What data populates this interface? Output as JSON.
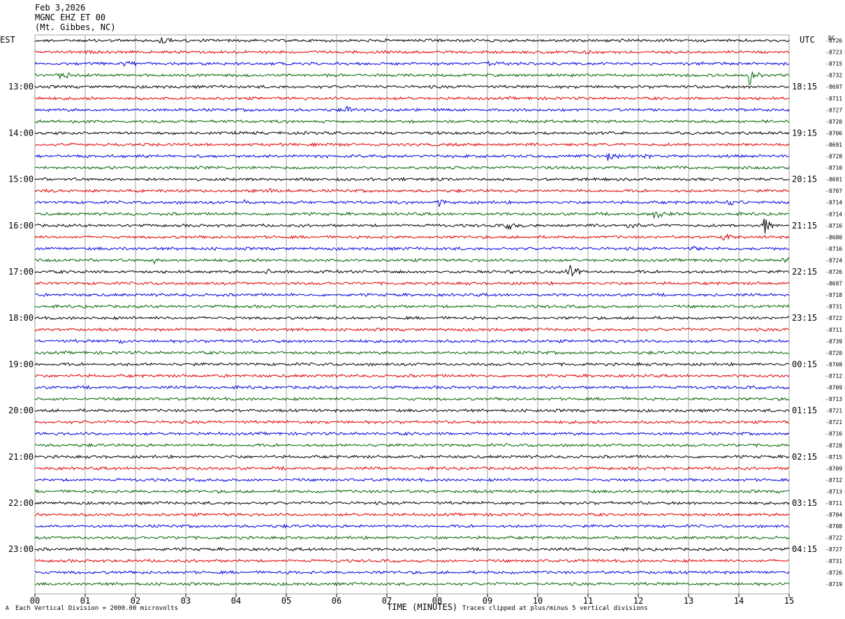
{
  "header": {
    "date": "Feb 3,2026",
    "station": "MGNC EHZ ET 00",
    "location": "(Mt. Gibbes, NC)"
  },
  "left_axis_label": "EST",
  "right_axis_label": "UTC",
  "dc_label": "DC",
  "footer": {
    "scale_note": "Each Vertical Division = 2000.00 microvolts",
    "x_title": "TIME (MINUTES)",
    "clip_note": "Traces clipped at plus/minus 5 vertical divisions",
    "corner_mark": "A"
  },
  "colors": {
    "cycle": [
      "#000000",
      "#e00000",
      "#0000e0",
      "#006400"
    ],
    "grid": "#a0a0a0"
  },
  "chart_data": {
    "type": "line",
    "title": "",
    "x_ticks": [
      "00",
      "01",
      "02",
      "03",
      "04",
      "05",
      "06",
      "07",
      "08",
      "09",
      "10",
      "11",
      "12",
      "13",
      "14",
      "15"
    ],
    "xlim": [
      0,
      15
    ],
    "trace_count": 48,
    "left_time_labels": [
      {
        "trace": 4,
        "label": "13:00"
      },
      {
        "trace": 8,
        "label": "14:00"
      },
      {
        "trace": 12,
        "label": "15:00"
      },
      {
        "trace": 16,
        "label": "16:00"
      },
      {
        "trace": 20,
        "label": "17:00"
      },
      {
        "trace": 24,
        "label": "18:00"
      },
      {
        "trace": 28,
        "label": "19:00"
      },
      {
        "trace": 32,
        "label": "20:00"
      },
      {
        "trace": 36,
        "label": "21:00"
      },
      {
        "trace": 40,
        "label": "22:00"
      },
      {
        "trace": 44,
        "label": "23:00"
      }
    ],
    "right_time_labels": [
      {
        "trace": 4,
        "label": "18:15"
      },
      {
        "trace": 8,
        "label": "19:15"
      },
      {
        "trace": 12,
        "label": "20:15"
      },
      {
        "trace": 16,
        "label": "21:15"
      },
      {
        "trace": 20,
        "label": "22:15"
      },
      {
        "trace": 24,
        "label": "23:15"
      },
      {
        "trace": 28,
        "label": "00:15"
      },
      {
        "trace": 32,
        "label": "01:15"
      },
      {
        "trace": 36,
        "label": "02:15"
      },
      {
        "trace": 40,
        "label": "03:15"
      },
      {
        "trace": 44,
        "label": "04:15"
      }
    ],
    "dc_offsets": [
      "-8726",
      "-8723",
      "-8715",
      "-8732",
      "-8697",
      "-8711",
      "-8727",
      "-8720",
      "-8706",
      "-8691",
      "-8728",
      "-8710",
      "-8691",
      "-8707",
      "-8714",
      "-8714",
      "-8716",
      "-8680",
      "-8716",
      "-8724",
      "-8726",
      "-8697",
      "-8718",
      "-8731",
      "-8722",
      "-8711",
      "-8739",
      "-8720",
      "-8708",
      "-8712",
      "-8709",
      "-8713",
      "-8721",
      "-8721",
      "-8716",
      "-8728",
      "-8715",
      "-8709",
      "-8712",
      "-8713",
      "-8711",
      "-8704",
      "-8708",
      "-8722",
      "-8727",
      "-8731",
      "-8726",
      "-8719"
    ],
    "events": [
      {
        "trace": 0,
        "minute": 2.5,
        "amp": 0.7
      },
      {
        "trace": 1,
        "minute": 10.9,
        "amp": 0.5
      },
      {
        "trace": 2,
        "minute": 1.8,
        "amp": 0.7
      },
      {
        "trace": 2,
        "minute": 9.0,
        "amp": 0.4
      },
      {
        "trace": 3,
        "minute": 0.45,
        "amp": 0.8
      },
      {
        "trace": 3,
        "minute": 14.2,
        "amp": 1.2
      },
      {
        "trace": 6,
        "minute": 6.2,
        "amp": 0.4
      },
      {
        "trace": 10,
        "minute": 11.4,
        "amp": 0.5
      },
      {
        "trace": 10,
        "minute": 12.1,
        "amp": 0.3
      },
      {
        "trace": 11,
        "minute": 12.7,
        "amp": 0.4
      },
      {
        "trace": 13,
        "minute": 4.7,
        "amp": 0.4
      },
      {
        "trace": 14,
        "minute": 4.1,
        "amp": 0.4
      },
      {
        "trace": 14,
        "minute": 8.0,
        "amp": 0.8
      },
      {
        "trace": 14,
        "minute": 13.8,
        "amp": 0.7
      },
      {
        "trace": 15,
        "minute": 12.3,
        "amp": 0.9
      },
      {
        "trace": 16,
        "minute": 9.4,
        "amp": 0.7
      },
      {
        "trace": 16,
        "minute": 11.8,
        "amp": 0.5
      },
      {
        "trace": 16,
        "minute": 14.5,
        "amp": 1.1
      },
      {
        "trace": 17,
        "minute": 13.7,
        "amp": 0.5
      },
      {
        "trace": 18,
        "minute": 13.1,
        "amp": 0.4
      },
      {
        "trace": 19,
        "minute": 2.3,
        "amp": 0.5
      },
      {
        "trace": 19,
        "minute": 14.9,
        "amp": 0.4
      },
      {
        "trace": 20,
        "minute": 4.6,
        "amp": 0.4
      },
      {
        "trace": 20,
        "minute": 10.6,
        "amp": 1.3
      },
      {
        "trace": 26,
        "minute": 1.7,
        "amp": 0.4
      }
    ]
  }
}
